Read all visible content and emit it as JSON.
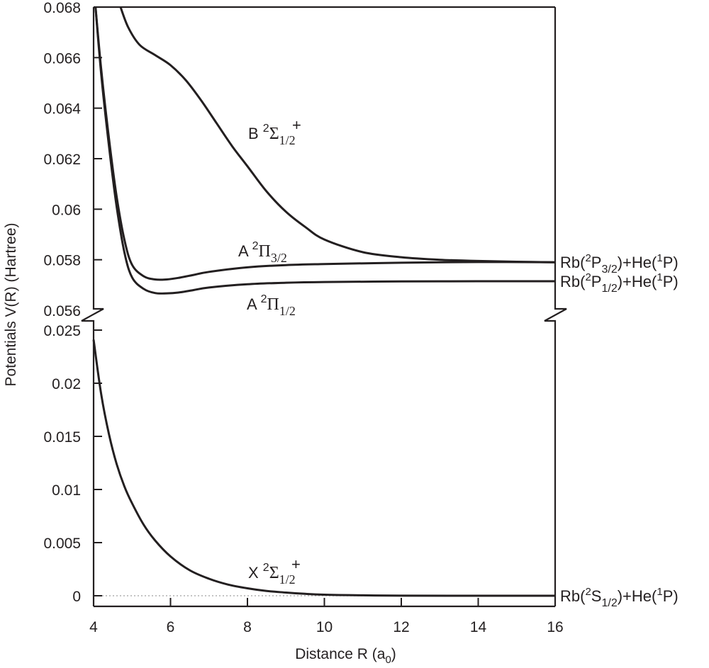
{
  "chart_data": {
    "type": "line",
    "title": "",
    "xlabel": "Distance R (a0)",
    "xlabel_main": "Distance R (a",
    "xlabel_sub": "0",
    "xlabel_close": ")",
    "ylabel": "Potentials V(R) (Hartree)",
    "xlim": [
      4,
      16
    ],
    "x_ticks": [
      4,
      6,
      8,
      10,
      12,
      14,
      16
    ],
    "x_tick_labels": [
      "4",
      "6",
      "8",
      "10",
      "12",
      "14",
      "16"
    ],
    "broken_y_axis": true,
    "upper_panel": {
      "ylim": [
        0.056,
        0.068
      ],
      "y_ticks": [
        0.056,
        0.058,
        0.06,
        0.062,
        0.064,
        0.066,
        0.068
      ],
      "y_tick_labels": [
        "0.056",
        "0.058",
        "0.06",
        "0.062",
        "0.064",
        "0.066",
        "0.068"
      ]
    },
    "lower_panel": {
      "ylim": [
        0,
        0.025
      ],
      "y_ticks": [
        0,
        0.005,
        0.01,
        0.015,
        0.02,
        0.025
      ],
      "y_tick_labels": [
        "0",
        "0.005",
        "0.01",
        "0.015",
        "0.02",
        "0.025"
      ]
    },
    "grid": false,
    "legend": "none (curves labeled inline)",
    "series": [
      {
        "name": "B 2Σ+1/2",
        "panel": "upper",
        "label": {
          "letter": "B",
          "sup": "2",
          "sym": "Σ",
          "sub": "1/2",
          "subsup": "+"
        },
        "x": [
          4.7,
          4.9,
          5.2,
          5.6,
          6.0,
          6.4,
          6.8,
          7.2,
          7.6,
          8.0,
          8.5,
          9.0,
          9.5,
          10.0,
          11.0,
          12.0,
          13.0,
          14.0,
          15.0,
          16.0
        ],
        "y": [
          0.068,
          0.0672,
          0.0665,
          0.0661,
          0.0657,
          0.0651,
          0.0643,
          0.0634,
          0.0625,
          0.0617,
          0.0607,
          0.0599,
          0.0593,
          0.0588,
          0.0583,
          0.0581,
          0.058,
          0.05795,
          0.05792,
          0.0579
        ]
      },
      {
        "name": "A 2Π3/2",
        "panel": "upper",
        "label": {
          "letter": "A",
          "sup": "2",
          "sym": "Π",
          "sub": "3/2"
        },
        "x": [
          4.05,
          4.2,
          4.4,
          4.6,
          4.8,
          5.0,
          5.3,
          5.6,
          5.9,
          6.2,
          6.6,
          7.0,
          8.0,
          9.0,
          10.0,
          12.0,
          14.0,
          16.0
        ],
        "y": [
          0.068,
          0.0655,
          0.0628,
          0.0605,
          0.0588,
          0.0578,
          0.05735,
          0.05722,
          0.05722,
          0.05728,
          0.0574,
          0.05752,
          0.0577,
          0.05779,
          0.05783,
          0.05788,
          0.05791,
          0.0579
        ]
      },
      {
        "name": "A 2Π1/2",
        "panel": "upper",
        "label": {
          "letter": "A",
          "sup": "2",
          "sym": "Π",
          "sub": "1/2"
        },
        "x": [
          4.05,
          4.2,
          4.4,
          4.6,
          4.8,
          5.0,
          5.3,
          5.6,
          5.9,
          6.2,
          6.6,
          7.0,
          8.0,
          9.0,
          10.0,
          12.0,
          14.0,
          16.0
        ],
        "y": [
          0.068,
          0.0653,
          0.0625,
          0.0601,
          0.0583,
          0.0573,
          0.05685,
          0.05668,
          0.05667,
          0.0567,
          0.0568,
          0.0569,
          0.05703,
          0.05709,
          0.05712,
          0.05714,
          0.05715,
          0.05715
        ]
      },
      {
        "name": "X 2Σ+1/2",
        "panel": "lower",
        "label": {
          "letter": "X",
          "sup": "2",
          "sym": "Σ",
          "sub": "1/2",
          "subsup": "+"
        },
        "x": [
          4.0,
          4.2,
          4.4,
          4.6,
          4.8,
          5.0,
          5.3,
          5.6,
          6.0,
          6.5,
          7.0,
          7.5,
          8.0,
          8.5,
          9.0,
          9.5,
          10.0,
          11.0,
          12.0,
          14.0,
          16.0
        ],
        "y": [
          0.0241,
          0.0189,
          0.0152,
          0.0124,
          0.0103,
          0.0087,
          0.0067,
          0.0052,
          0.0037,
          0.0024,
          0.0016,
          0.00105,
          0.0007,
          0.00045,
          0.0003,
          0.00018,
          0.0001,
          4e-05,
          1e-05,
          0.0,
          0.0
        ]
      }
    ],
    "asymptote_labels": [
      {
        "atom": "Rb(",
        "sup": "2",
        "term": "P",
        "sub": "3/2",
        "rest": ")+He(",
        "sup2": "1",
        "term2": "P)",
        "y": 0.0579,
        "panel": "upper"
      },
      {
        "atom": "Rb(",
        "sup": "2",
        "term": "P",
        "sub": "1/2",
        "rest": ")+He(",
        "sup2": "1",
        "term2": "P)",
        "y": 0.05715,
        "panel": "upper"
      },
      {
        "atom": "Rb(",
        "sup": "2",
        "term": "S",
        "sub": "1/2",
        "rest": ")+He(",
        "sup2": "1",
        "term2": "P)",
        "y": 0.0,
        "panel": "lower"
      }
    ],
    "reference_line": {
      "y": 0,
      "style": "dotted",
      "color": "#aaaaaa"
    }
  },
  "colors": {
    "line": "#231f20",
    "axis": "#231f20",
    "zero_line": "#b0b0b0",
    "background": "#ffffff"
  }
}
